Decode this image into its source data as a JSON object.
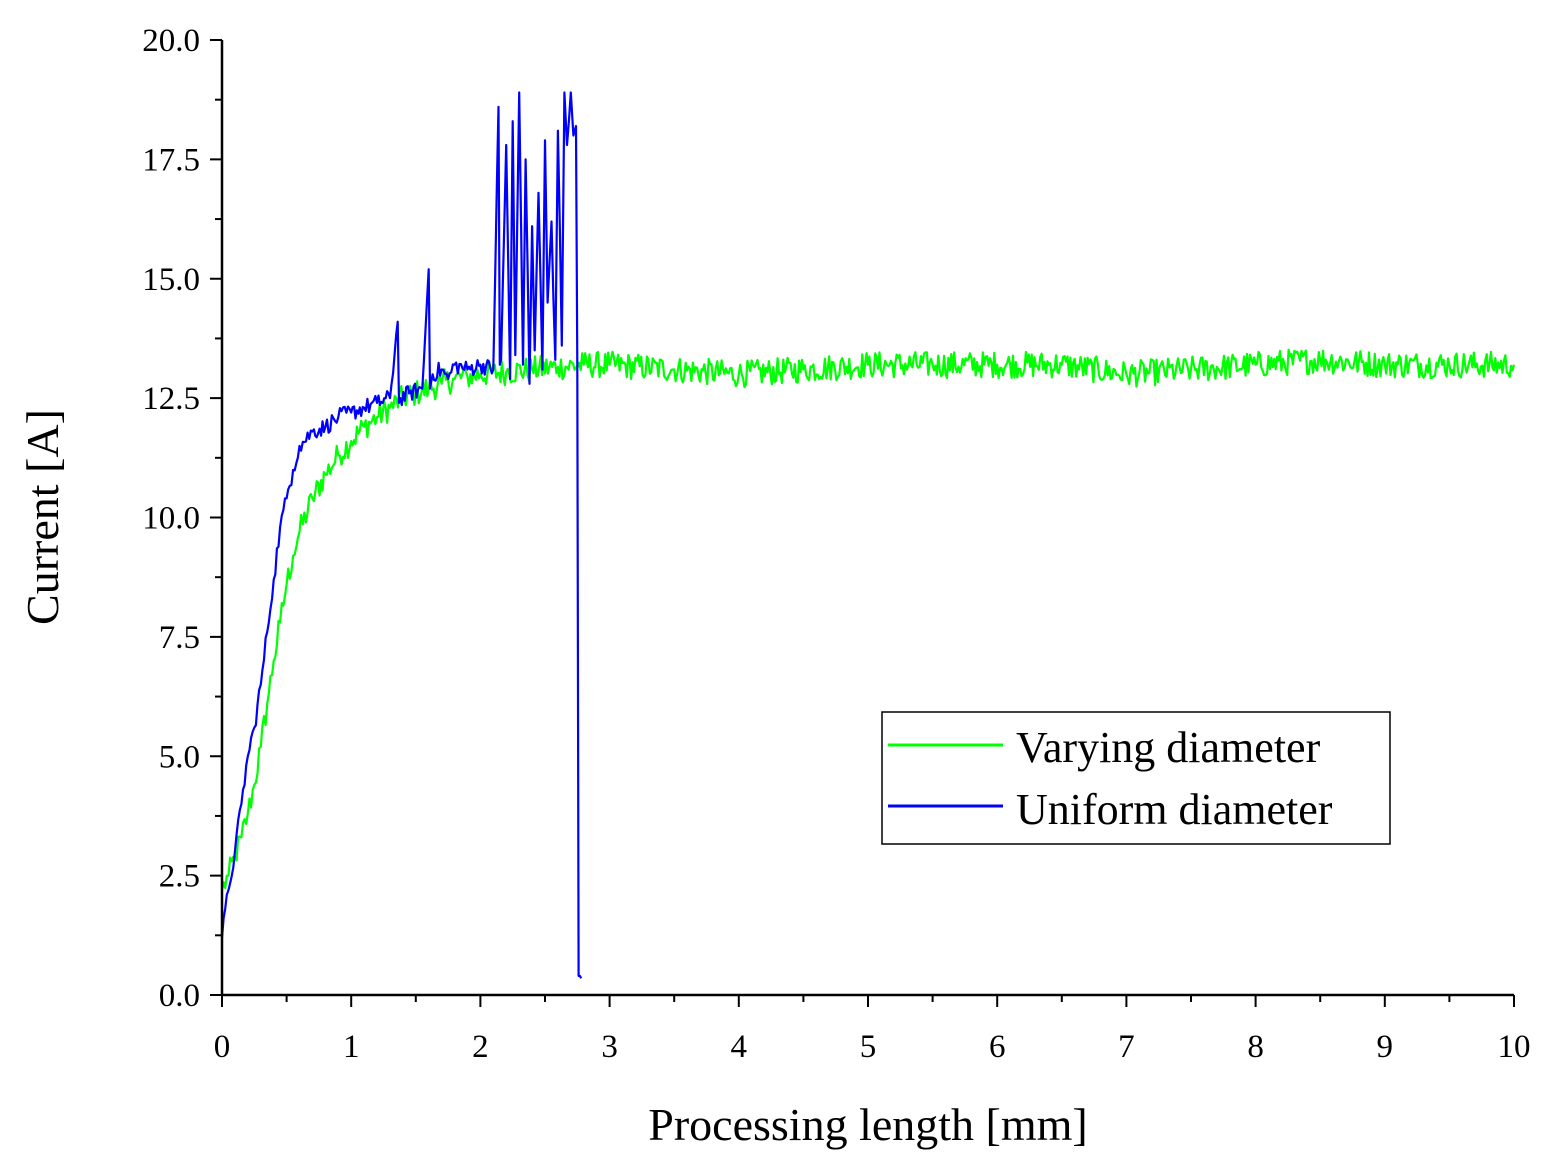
{
  "chart_data": {
    "type": "line",
    "title": "",
    "xlabel": "Processing length [mm]",
    "ylabel": "Current [A]",
    "xlim": [
      0,
      10
    ],
    "ylim": [
      0,
      20
    ],
    "x_ticks": [
      "0",
      "1",
      "2",
      "3",
      "4",
      "5",
      "6",
      "7",
      "8",
      "9",
      "10"
    ],
    "y_ticks": [
      "0.0",
      "2.5",
      "5.0",
      "7.5",
      "10.0",
      "12.5",
      "15.0",
      "17.5",
      "20.0"
    ],
    "grid": false,
    "legend_position": "right-middle",
    "series": [
      {
        "name": "Varying diameter",
        "color": "#00ff00",
        "x": [
          0,
          0.05,
          0.1,
          0.15,
          0.2,
          0.25,
          0.3,
          0.35,
          0.4,
          0.45,
          0.5,
          0.55,
          0.6,
          0.7,
          0.8,
          0.9,
          1.0,
          1.1,
          1.2,
          1.3,
          1.4,
          1.5,
          1.6,
          1.7,
          1.8,
          1.9,
          2.0,
          2.2,
          2.4,
          2.6,
          2.8,
          3.0,
          3.5,
          4.0,
          4.5,
          5.0,
          5.5,
          6.0,
          6.5,
          7.0,
          7.5,
          8.0,
          8.5,
          9.0,
          9.5,
          10.0
        ],
        "values": [
          2.2,
          2.5,
          2.9,
          3.3,
          3.8,
          4.4,
          5.2,
          6.1,
          7.0,
          7.8,
          8.6,
          9.2,
          9.7,
          10.4,
          10.9,
          11.3,
          11.6,
          11.9,
          12.1,
          12.3,
          12.5,
          12.6,
          12.7,
          12.8,
          12.9,
          12.95,
          13.0,
          13.05,
          13.1,
          13.15,
          13.2,
          13.2,
          13.1,
          13.0,
          13.1,
          13.2,
          13.2,
          13.2,
          13.2,
          13.0,
          13.1,
          13.2,
          13.3,
          13.2,
          13.2,
          13.2
        ]
      },
      {
        "name": "Uniform diameter",
        "color": "#0000ff",
        "x": [
          0,
          0.05,
          0.1,
          0.15,
          0.2,
          0.25,
          0.3,
          0.35,
          0.4,
          0.45,
          0.5,
          0.55,
          0.6,
          0.7,
          0.8,
          0.9,
          1.0,
          1.1,
          1.2,
          1.3,
          1.36,
          1.37,
          1.38,
          1.45,
          1.55,
          1.6,
          1.61,
          1.63,
          1.7,
          1.75,
          1.8,
          1.9,
          2.0,
          2.1,
          2.14,
          2.15,
          2.16,
          2.2,
          2.23,
          2.25,
          2.27,
          2.3,
          2.33,
          2.35,
          2.38,
          2.4,
          2.42,
          2.45,
          2.48,
          2.5,
          2.52,
          2.55,
          2.58,
          2.6,
          2.63,
          2.65,
          2.67,
          2.7,
          2.72,
          2.74,
          2.75,
          2.76,
          2.77,
          2.78
        ],
        "values": [
          1.2,
          2.2,
          3.0,
          4.0,
          5.0,
          5.6,
          6.5,
          7.6,
          8.7,
          9.8,
          10.4,
          11.0,
          11.5,
          11.8,
          11.9,
          12.1,
          12.2,
          12.3,
          12.4,
          12.5,
          14.1,
          12.4,
          12.5,
          12.6,
          12.7,
          15.2,
          12.7,
          13.0,
          13.1,
          12.9,
          13.2,
          13.1,
          13.2,
          13.1,
          18.6,
          13.2,
          13.3,
          17.8,
          12.9,
          18.3,
          13.4,
          18.9,
          13.2,
          17.5,
          12.8,
          16.1,
          13.5,
          16.8,
          13.1,
          17.9,
          14.5,
          16.2,
          13.3,
          18.1,
          13.6,
          18.9,
          17.8,
          18.9,
          18.0,
          18.2,
          13.2,
          0.4,
          0.4,
          0.35
        ]
      }
    ]
  }
}
